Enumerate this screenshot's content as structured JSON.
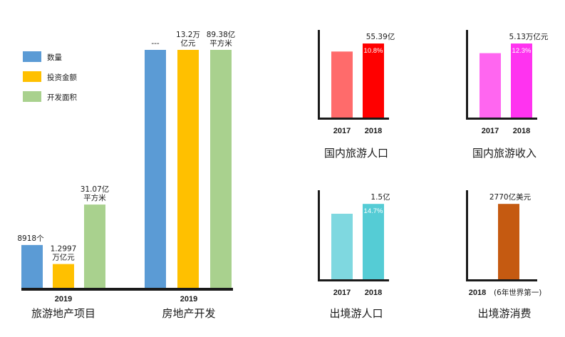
{
  "chart_data": [
    {
      "type": "bar",
      "title": "旅游地产项目",
      "categories": [
        "2019"
      ],
      "legend": [
        {
          "name": "数量",
          "color": "#5B9BD5"
        },
        {
          "name": "投资金额",
          "color": "#FFC000"
        },
        {
          "name": "开发面积",
          "color": "#A9D18E"
        }
      ],
      "bars": [
        {
          "series": "数量",
          "label_lines": [
            "8918个"
          ],
          "relative_height": 0.18
        },
        {
          "series": "投资金额",
          "label_lines": [
            "1.2997",
            "万亿元"
          ],
          "relative_height": 0.1
        },
        {
          "series": "开发面积",
          "label_lines": [
            "31.07亿",
            "平方米"
          ],
          "relative_height": 0.35
        }
      ]
    },
    {
      "type": "bar",
      "title": "房地产开发",
      "categories": [
        "2019"
      ],
      "bars": [
        {
          "series": "数量",
          "label_lines": [
            "---"
          ],
          "relative_height": 1.0
        },
        {
          "series": "投资金额",
          "label_lines": [
            "13.2万",
            "亿元"
          ],
          "relative_height": 1.0
        },
        {
          "series": "开发面积",
          "label_lines": [
            "89.38亿",
            "平方米"
          ],
          "relative_height": 1.0
        }
      ]
    },
    {
      "type": "bar",
      "title": "国内旅游人口",
      "categories": [
        "2017",
        "2018"
      ],
      "values": [
        null,
        55.39
      ],
      "unit": "亿",
      "value_labels": [
        "",
        "55.39亿"
      ],
      "growth_labels": [
        "",
        "10.8%"
      ],
      "colors": [
        "#FF6B6B",
        "#FF0000"
      ],
      "relative_heights": [
        0.82,
        0.92
      ]
    },
    {
      "type": "bar",
      "title": "国内旅游收入",
      "categories": [
        "2017",
        "2018"
      ],
      "values": [
        null,
        5.13
      ],
      "unit": "万亿元",
      "value_labels": [
        "",
        "5.13万亿元"
      ],
      "growth_labels": [
        "",
        "12.3%"
      ],
      "colors": [
        "#FF66F0",
        "#FF33F0"
      ],
      "relative_heights": [
        0.8,
        0.92
      ]
    },
    {
      "type": "bar",
      "title": "出境游人口",
      "categories": [
        "2017",
        "2018"
      ],
      "values": [
        null,
        1.5
      ],
      "unit": "亿",
      "value_labels": [
        "",
        "1.5亿"
      ],
      "growth_labels": [
        "",
        "14.7%"
      ],
      "colors": [
        "#7FD8E0",
        "#55CCD5"
      ],
      "relative_heights": [
        0.8,
        0.92
      ]
    },
    {
      "type": "bar",
      "title": "出境游消费",
      "categories": [
        "2018"
      ],
      "category_note": "(6年世界第一)",
      "values": [
        2770
      ],
      "unit": "亿美元",
      "value_labels": [
        "2770亿美元"
      ],
      "colors": [
        "#C55A11"
      ],
      "relative_heights": [
        0.92
      ]
    }
  ]
}
